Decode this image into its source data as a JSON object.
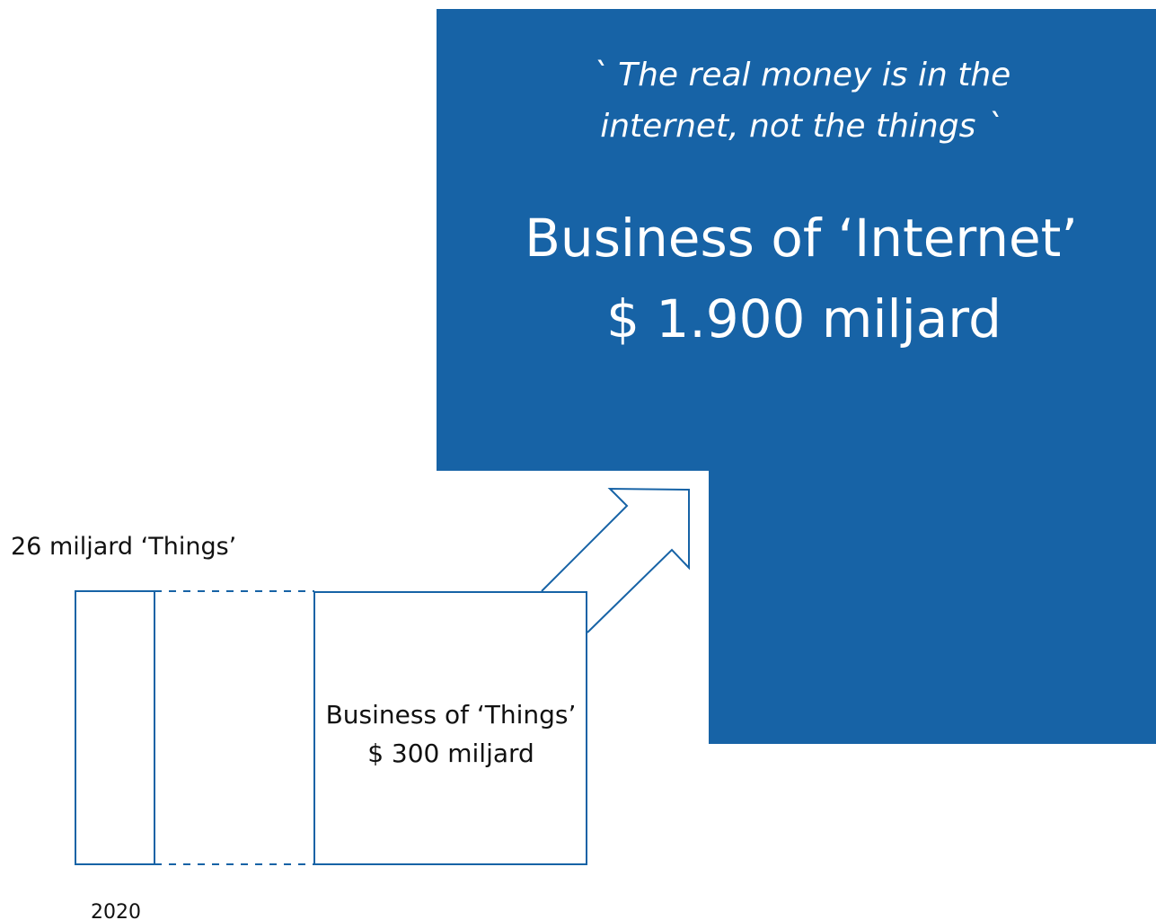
{
  "quote": [
    "` The real money is in the",
    "internet, not the things `"
  ],
  "internet": {
    "title": "Business of ‘Internet’",
    "value": "$ 1.900 miljard"
  },
  "things_count": "26 miljard ‘Things’",
  "things": {
    "title": "Business of ‘Things’",
    "value": "$ 300 miljard"
  },
  "year": "2020"
}
